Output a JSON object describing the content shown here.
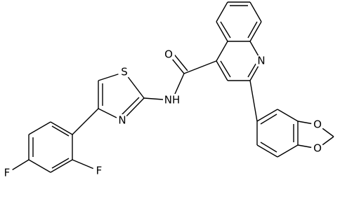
{
  "atoms": [
    "O",
    "N",
    "NH",
    "S",
    "N",
    "F",
    "F",
    "O",
    "O"
  ]
}
